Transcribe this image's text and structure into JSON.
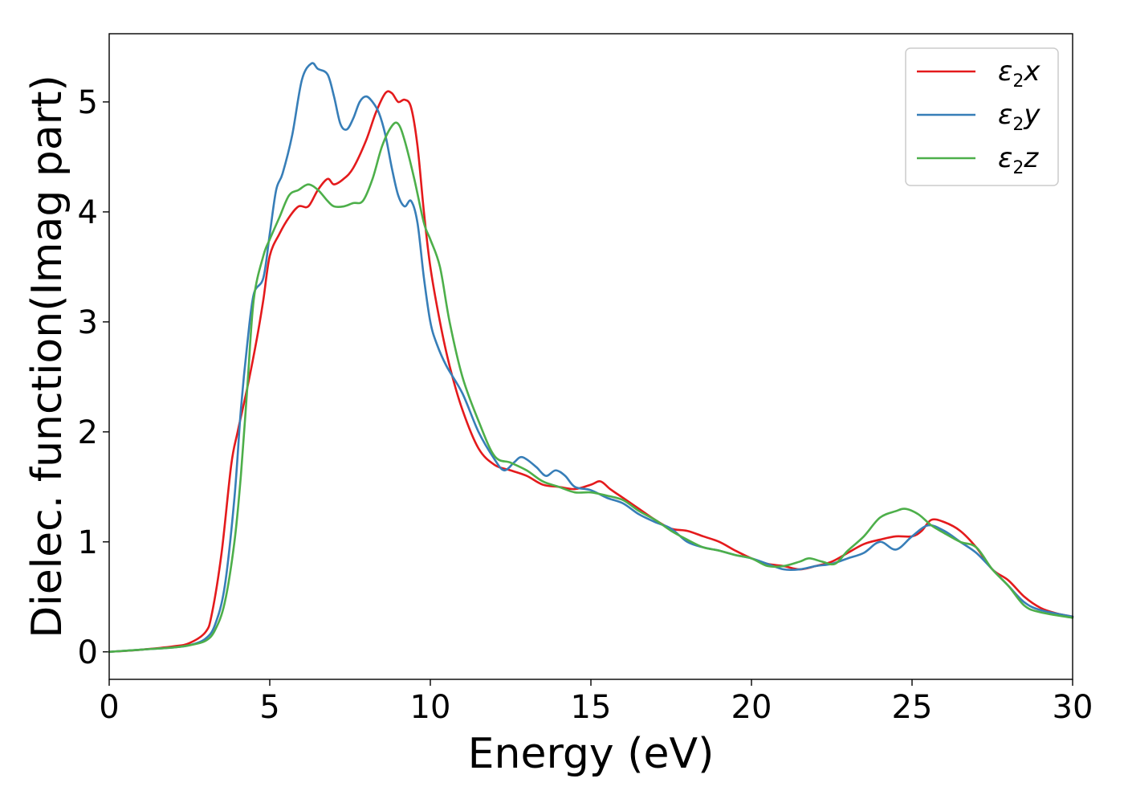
{
  "chart_data": {
    "type": "line",
    "title": "",
    "xlabel": "Energy (eV)",
    "ylabel": "Dielec. function(Imag part)",
    "xlim": [
      0,
      30
    ],
    "ylim": [
      -0.25,
      5.62
    ],
    "xticks": [
      0,
      5,
      10,
      15,
      20,
      25,
      30
    ],
    "yticks": [
      0,
      1,
      2,
      3,
      4,
      5
    ],
    "grid": false,
    "legend": "top-right",
    "series": [
      {
        "name": "ε2x",
        "legend_base": "ε",
        "legend_sub": "2",
        "legend_tail": "x",
        "color": "#e41a1c",
        "x": [
          0,
          1,
          2,
          2.5,
          3,
          3.2,
          3.5,
          3.8,
          4.0,
          4.3,
          4.6,
          4.8,
          5.0,
          5.3,
          5.6,
          5.9,
          6.2,
          6.5,
          6.8,
          7.0,
          7.3,
          7.6,
          8.0,
          8.3,
          8.6,
          8.8,
          9.0,
          9.2,
          9.4,
          9.6,
          9.8,
          10.0,
          10.3,
          10.6,
          11.0,
          11.5,
          12.0,
          12.5,
          13.0,
          13.5,
          14.0,
          14.5,
          15.0,
          15.3,
          15.6,
          16.0,
          16.5,
          17.0,
          17.5,
          18.0,
          18.5,
          19.0,
          19.5,
          20.0,
          20.5,
          21.0,
          21.5,
          22.0,
          22.5,
          23.0,
          23.5,
          24.0,
          24.5,
          25.0,
          25.3,
          25.6,
          26.0,
          26.5,
          27.0,
          27.5,
          28.0,
          28.5,
          29.0,
          29.5,
          30.0
        ],
        "y": [
          0,
          0.02,
          0.05,
          0.08,
          0.18,
          0.35,
          0.9,
          1.7,
          2.0,
          2.4,
          2.85,
          3.2,
          3.6,
          3.8,
          3.95,
          4.05,
          4.05,
          4.2,
          4.3,
          4.25,
          4.3,
          4.4,
          4.65,
          4.9,
          5.08,
          5.08,
          5.0,
          5.02,
          4.95,
          4.6,
          4.0,
          3.5,
          3.0,
          2.6,
          2.2,
          1.85,
          1.7,
          1.65,
          1.6,
          1.52,
          1.5,
          1.48,
          1.52,
          1.55,
          1.48,
          1.4,
          1.3,
          1.2,
          1.12,
          1.1,
          1.05,
          1.0,
          0.92,
          0.85,
          0.8,
          0.78,
          0.75,
          0.78,
          0.82,
          0.9,
          0.98,
          1.02,
          1.05,
          1.05,
          1.1,
          1.2,
          1.18,
          1.1,
          0.95,
          0.75,
          0.65,
          0.5,
          0.4,
          0.35,
          0.32
        ]
      },
      {
        "name": "ε2y",
        "legend_base": "ε",
        "legend_sub": "2",
        "legend_tail": "y",
        "color": "#377eb8",
        "x": [
          0,
          1,
          2,
          2.5,
          3,
          3.3,
          3.6,
          3.9,
          4.1,
          4.3,
          4.5,
          4.8,
          5.0,
          5.2,
          5.4,
          5.7,
          6.0,
          6.3,
          6.5,
          6.8,
          7.0,
          7.2,
          7.4,
          7.6,
          7.8,
          8.0,
          8.2,
          8.4,
          8.6,
          8.8,
          9.0,
          9.2,
          9.4,
          9.6,
          9.8,
          10.0,
          10.2,
          10.5,
          11.0,
          11.5,
          12.0,
          12.3,
          12.6,
          12.8,
          13.0,
          13.3,
          13.6,
          13.9,
          14.2,
          14.5,
          15.0,
          15.5,
          16.0,
          16.5,
          17.0,
          17.5,
          18.0,
          18.5,
          19.0,
          19.5,
          20.0,
          20.5,
          21.0,
          21.5,
          22.0,
          22.5,
          23.0,
          23.5,
          24.0,
          24.5,
          25.0,
          25.5,
          26.0,
          26.5,
          27.0,
          27.5,
          28.0,
          28.5,
          29.0,
          30.0
        ],
        "y": [
          0,
          0.02,
          0.04,
          0.06,
          0.12,
          0.25,
          0.6,
          1.4,
          2.2,
          2.8,
          3.25,
          3.4,
          3.8,
          4.2,
          4.35,
          4.7,
          5.2,
          5.35,
          5.3,
          5.25,
          5.05,
          4.8,
          4.75,
          4.85,
          5.0,
          5.05,
          5.0,
          4.9,
          4.7,
          4.4,
          4.15,
          4.05,
          4.1,
          3.9,
          3.4,
          3.0,
          2.8,
          2.6,
          2.35,
          2.0,
          1.75,
          1.65,
          1.72,
          1.77,
          1.75,
          1.68,
          1.6,
          1.65,
          1.6,
          1.5,
          1.47,
          1.4,
          1.35,
          1.25,
          1.18,
          1.12,
          1.0,
          0.95,
          0.92,
          0.88,
          0.85,
          0.8,
          0.75,
          0.75,
          0.78,
          0.8,
          0.85,
          0.9,
          1.0,
          0.93,
          1.05,
          1.15,
          1.1,
          1.0,
          0.9,
          0.75,
          0.6,
          0.45,
          0.38,
          0.32
        ]
      },
      {
        "name": "ε2z",
        "legend_base": "ε",
        "legend_sub": "2",
        "legend_tail": "z",
        "color": "#4daf4a",
        "x": [
          0,
          1,
          2,
          2.5,
          3,
          3.3,
          3.6,
          3.9,
          4.1,
          4.3,
          4.5,
          4.8,
          5.0,
          5.3,
          5.6,
          5.9,
          6.2,
          6.5,
          6.8,
          7.0,
          7.3,
          7.6,
          7.9,
          8.2,
          8.5,
          8.8,
          9.0,
          9.2,
          9.5,
          9.8,
          10.0,
          10.3,
          10.6,
          11.0,
          11.5,
          12.0,
          12.5,
          13.0,
          13.5,
          14.0,
          14.5,
          15.0,
          15.5,
          16.0,
          16.5,
          17.0,
          17.5,
          18.0,
          18.5,
          19.0,
          19.5,
          20.0,
          20.5,
          21.0,
          21.5,
          21.8,
          22.2,
          22.6,
          23.0,
          23.5,
          24.0,
          24.5,
          24.8,
          25.2,
          25.6,
          26.0,
          26.5,
          27.0,
          27.5,
          28.0,
          28.5,
          29.0,
          30.0
        ],
        "y": [
          0,
          0.02,
          0.04,
          0.06,
          0.1,
          0.2,
          0.45,
          1.0,
          1.6,
          2.4,
          3.2,
          3.6,
          3.75,
          3.95,
          4.15,
          4.2,
          4.25,
          4.2,
          4.1,
          4.05,
          4.05,
          4.08,
          4.1,
          4.3,
          4.6,
          4.78,
          4.8,
          4.65,
          4.3,
          3.9,
          3.75,
          3.5,
          3.0,
          2.5,
          2.1,
          1.78,
          1.72,
          1.65,
          1.55,
          1.5,
          1.45,
          1.45,
          1.42,
          1.38,
          1.28,
          1.2,
          1.1,
          1.02,
          0.95,
          0.92,
          0.88,
          0.85,
          0.78,
          0.78,
          0.82,
          0.85,
          0.82,
          0.8,
          0.92,
          1.05,
          1.22,
          1.28,
          1.3,
          1.25,
          1.15,
          1.08,
          1.0,
          0.95,
          0.75,
          0.6,
          0.42,
          0.36,
          0.31
        ]
      }
    ]
  }
}
